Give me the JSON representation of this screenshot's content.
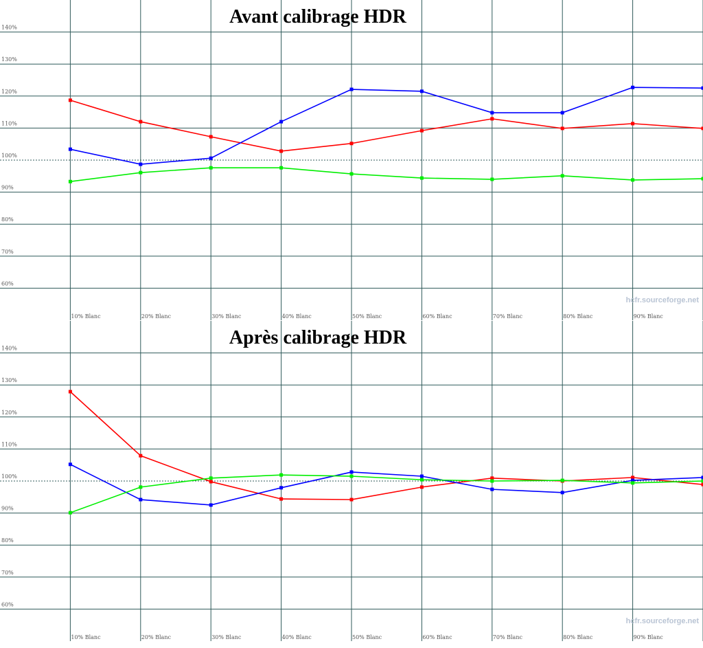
{
  "chart_data": [
    {
      "type": "line",
      "title": "Avant calibrage HDR",
      "watermark": "hcfr.sourceforge.net",
      "categories": [
        "10% Blanc",
        "20% Blanc",
        "30% Blanc",
        "40% Blanc",
        "50% Blanc",
        "60% Blanc",
        "70% Blanc",
        "80% Blanc",
        "90% Blanc",
        null
      ],
      "ylim": [
        50,
        150
      ],
      "yticks": [
        {
          "value": 60,
          "label": "60%"
        },
        {
          "value": 70,
          "label": "70%"
        },
        {
          "value": 80,
          "label": "80%"
        },
        {
          "value": 90,
          "label": "90%"
        },
        {
          "value": 100,
          "label": "100%"
        },
        {
          "value": 110,
          "label": "110%"
        },
        {
          "value": 120,
          "label": "120%"
        },
        {
          "value": 130,
          "label": "130%"
        },
        {
          "value": 140,
          "label": "140%"
        }
      ],
      "reference": 100,
      "grid": true,
      "series": [
        {
          "color": "#ff0000",
          "values": [
            118.7,
            112,
            107.3,
            102.8,
            105.2,
            109.2,
            112.9,
            109.9,
            111.4,
            109.9
          ]
        },
        {
          "color": "#0000ff",
          "values": [
            103.4,
            98.7,
            100.6,
            112,
            122.1,
            121.5,
            114.8,
            114.8,
            122.7,
            122.5
          ]
        },
        {
          "color": "#00ee00",
          "values": [
            93.3,
            96.1,
            97.6,
            97.6,
            95.7,
            94.4,
            94,
            95.1,
            93.8,
            94.2
          ]
        }
      ]
    },
    {
      "type": "line",
      "title": "Après calibrage HDR",
      "watermark": "hcfr.sourceforge.net",
      "categories": [
        "10% Blanc",
        "20% Blanc",
        "30% Blanc",
        "40% Blanc",
        "50% Blanc",
        "60% Blanc",
        "70% Blanc",
        "80% Blanc",
        "90% Blanc",
        null
      ],
      "ylim": [
        50,
        150
      ],
      "yticks": [
        {
          "value": 60,
          "label": "60%"
        },
        {
          "value": 70,
          "label": "70%"
        },
        {
          "value": 80,
          "label": "80%"
        },
        {
          "value": 90,
          "label": "90%"
        },
        {
          "value": 100,
          "label": "100%"
        },
        {
          "value": 110,
          "label": "110%"
        },
        {
          "value": 120,
          "label": "120%"
        },
        {
          "value": 130,
          "label": "130%"
        },
        {
          "value": 140,
          "label": "140%"
        }
      ],
      "reference": 100,
      "grid": true,
      "series": [
        {
          "color": "#ff0000",
          "values": [
            127.9,
            107.9,
            99.8,
            94.4,
            94.2,
            98.1,
            100.9,
            100,
            101.1,
            98.9
          ]
        },
        {
          "color": "#0000ff",
          "values": [
            105.2,
            94.2,
            92.5,
            97.9,
            102.8,
            101.5,
            97.4,
            96.4,
            100.2,
            101.1
          ]
        },
        {
          "color": "#00ee00",
          "values": [
            90.1,
            98.1,
            100.9,
            101.9,
            101.5,
            100.4,
            100,
            100.2,
            99.4,
            100
          ]
        }
      ]
    }
  ]
}
